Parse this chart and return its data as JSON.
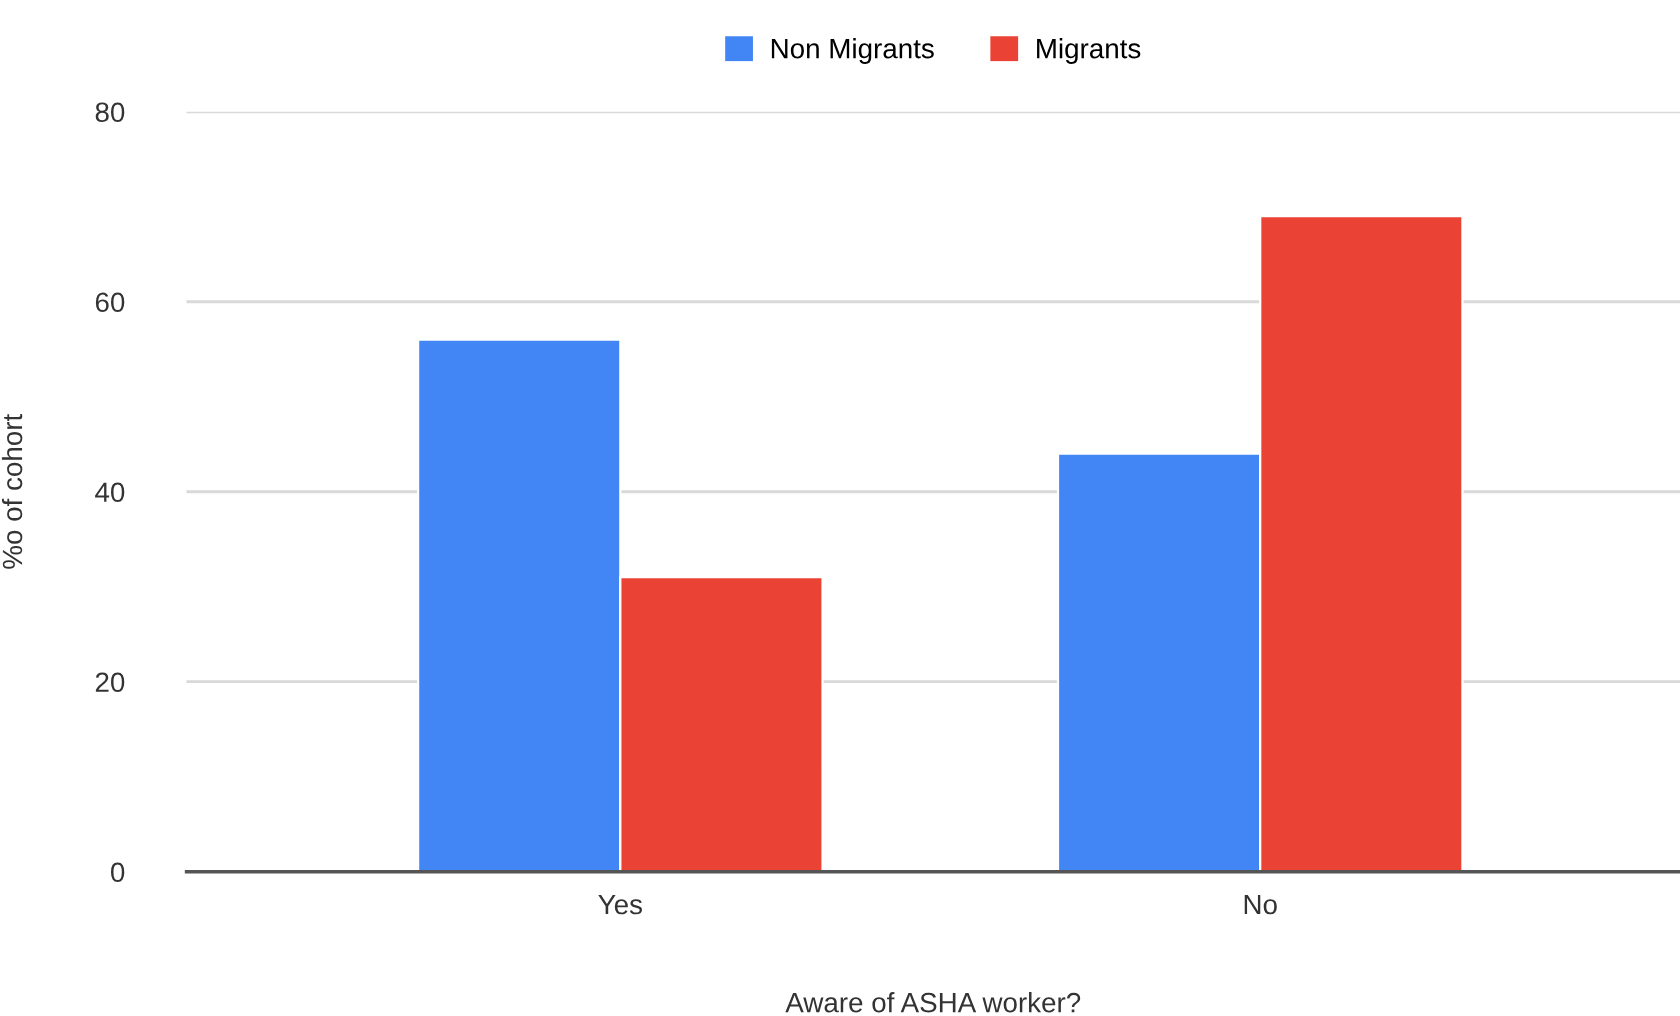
{
  "chart_data": {
    "type": "bar",
    "categories": [
      "Yes",
      "No"
    ],
    "series": [
      {
        "name": "Non Migrants",
        "color": "#4285f4",
        "values": [
          56,
          44
        ]
      },
      {
        "name": "Migrants",
        "color": "#ea4335",
        "values": [
          31,
          69
        ]
      }
    ],
    "xlabel": "Aware of ASHA worker?",
    "ylabel": "%o of cohort",
    "ylim": [
      0,
      80
    ],
    "yticks": [
      0,
      20,
      40,
      60,
      80
    ],
    "grid": "y",
    "legend": "top"
  }
}
